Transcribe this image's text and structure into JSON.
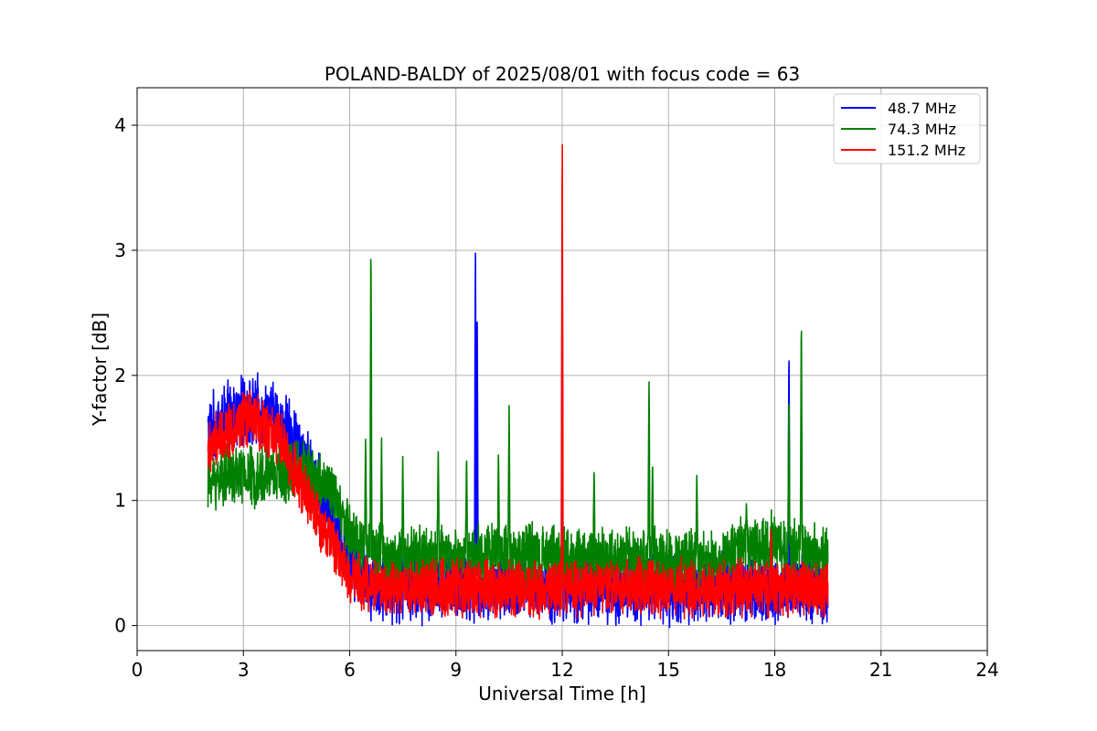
{
  "chart_data": {
    "type": "line",
    "title": "POLAND-BALDY of 2025/08/01 with focus code = 63",
    "xlabel": "Universal Time [h]",
    "ylabel": "Y-factor [dB]",
    "xlim": [
      0,
      24
    ],
    "ylim": [
      -0.2,
      4.3
    ],
    "xticks": [
      0,
      3,
      6,
      9,
      12,
      15,
      18,
      21,
      24
    ],
    "xtick_labels": [
      "0",
      "3",
      "6",
      "9",
      "12",
      "15",
      "18",
      "21",
      "24"
    ],
    "yticks": [
      0,
      1,
      2,
      3,
      4
    ],
    "ytick_labels": [
      "0",
      "1",
      "2",
      "3",
      "4"
    ],
    "grid": true,
    "legend_position": "top-right",
    "x_range_data": [
      2.0,
      19.5
    ],
    "series": [
      {
        "name": "48.7 MHz",
        "color": "#0000ff",
        "baseline": [
          [
            2.0,
            1.55
          ],
          [
            2.5,
            1.65
          ],
          [
            3.0,
            1.7
          ],
          [
            3.5,
            1.7
          ],
          [
            4.0,
            1.65
          ],
          [
            4.5,
            1.45
          ],
          [
            5.0,
            1.15
          ],
          [
            5.5,
            0.85
          ],
          [
            6.0,
            0.55
          ],
          [
            6.5,
            0.35
          ],
          [
            7.0,
            0.3
          ],
          [
            9.0,
            0.3
          ],
          [
            12.0,
            0.3
          ],
          [
            15.0,
            0.3
          ],
          [
            18.0,
            0.3
          ],
          [
            19.5,
            0.3
          ]
        ],
        "noise_amplitude": 0.32,
        "spikes": [
          [
            9.55,
            3.17
          ],
          [
            9.6,
            2.5
          ],
          [
            18.4,
            2.32
          ],
          [
            12.0,
            3.0
          ]
        ]
      },
      {
        "name": "74.3 MHz",
        "color": "#008000",
        "baseline": [
          [
            2.0,
            1.15
          ],
          [
            2.5,
            1.2
          ],
          [
            3.0,
            1.2
          ],
          [
            3.5,
            1.2
          ],
          [
            4.0,
            1.22
          ],
          [
            4.5,
            1.25
          ],
          [
            5.0,
            1.2
          ],
          [
            5.5,
            1.05
          ],
          [
            6.0,
            0.75
          ],
          [
            6.5,
            0.6
          ],
          [
            7.0,
            0.55
          ],
          [
            9.0,
            0.55
          ],
          [
            10.0,
            0.58
          ],
          [
            12.0,
            0.55
          ],
          [
            15.0,
            0.52
          ],
          [
            16.5,
            0.5
          ],
          [
            17.0,
            0.62
          ],
          [
            18.0,
            0.65
          ],
          [
            19.5,
            0.55
          ]
        ],
        "noise_amplitude": 0.28,
        "spikes": [
          [
            6.6,
            3.19
          ],
          [
            6.45,
            1.52
          ],
          [
            6.9,
            1.5
          ],
          [
            7.5,
            1.38
          ],
          [
            8.5,
            1.45
          ],
          [
            9.3,
            1.4
          ],
          [
            10.5,
            1.8
          ],
          [
            10.2,
            1.42
          ],
          [
            12.9,
            1.3
          ],
          [
            14.45,
            2.05
          ],
          [
            14.55,
            1.35
          ],
          [
            15.8,
            1.25
          ],
          [
            18.4,
            1.9
          ],
          [
            18.75,
            2.55
          ],
          [
            17.2,
            1.0
          ]
        ]
      },
      {
        "name": "151.2 MHz",
        "color": "#ff0000",
        "baseline": [
          [
            2.0,
            1.4
          ],
          [
            2.5,
            1.55
          ],
          [
            3.0,
            1.65
          ],
          [
            3.5,
            1.62
          ],
          [
            4.0,
            1.5
          ],
          [
            4.5,
            1.2
          ],
          [
            5.0,
            0.9
          ],
          [
            5.5,
            0.65
          ],
          [
            6.0,
            0.4
          ],
          [
            6.5,
            0.32
          ],
          [
            7.0,
            0.3
          ],
          [
            9.0,
            0.3
          ],
          [
            12.0,
            0.3
          ],
          [
            15.0,
            0.3
          ],
          [
            18.0,
            0.3
          ],
          [
            19.5,
            0.3
          ]
        ],
        "noise_amplitude": 0.26,
        "spikes": [
          [
            12.0,
            4.1
          ],
          [
            17.9,
            0.8
          ]
        ]
      }
    ]
  }
}
